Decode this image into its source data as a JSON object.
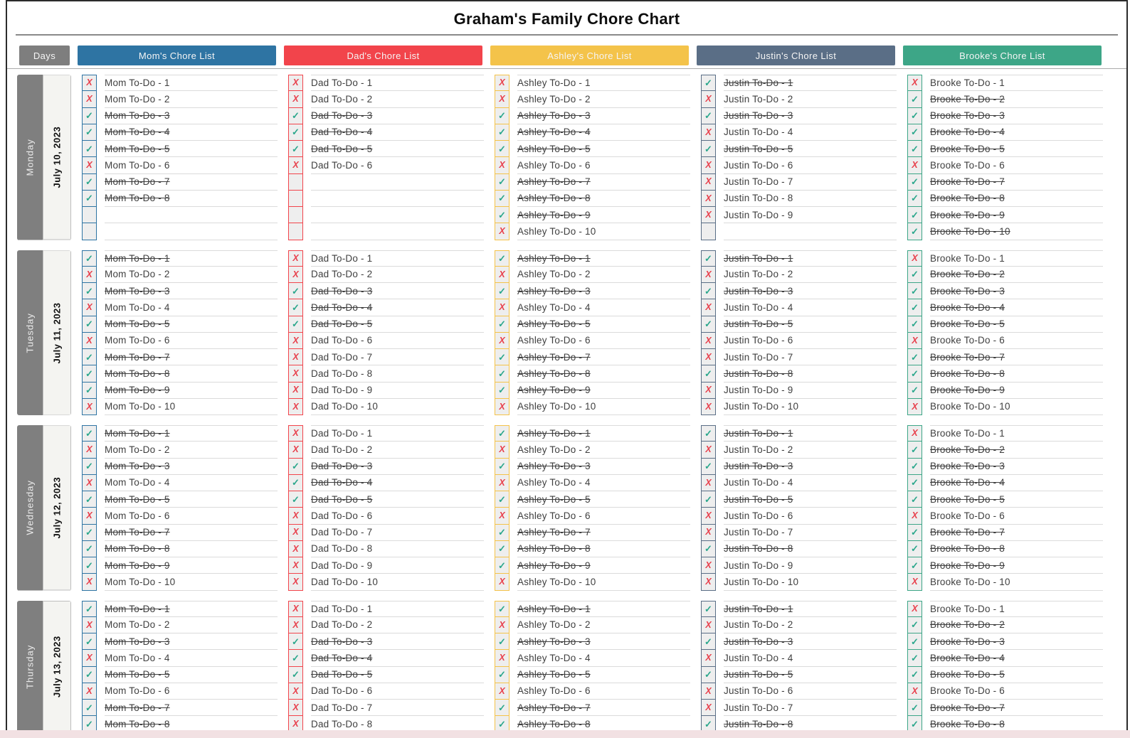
{
  "title": "Graham's Family Chore Chart",
  "days_header": "Days",
  "marks": {
    "done": "✓",
    "not_done": "X"
  },
  "colors": {
    "days_header_bg": "#7e7e7e",
    "check": "#2ba78c",
    "cross": "#e8414d",
    "text": "#3f3f3f",
    "row_line": "#dbdbdb",
    "day_name_bg": "#7f7f7f",
    "day_name_text": "#ebebeb",
    "day_date_bg": "#f4f4f1",
    "day_date_border": "#bdbdbd",
    "bottom_strip": "#f2e1e3"
  },
  "members": [
    {
      "id": "mom",
      "header": "Mom's Chore List",
      "color": "#2e74a3"
    },
    {
      "id": "dad",
      "header": "Dad's Chore List",
      "color": "#f2444b"
    },
    {
      "id": "ashley",
      "header": "Ashley's Chore List",
      "color": "#f4c34a"
    },
    {
      "id": "justin",
      "header": "Justin's Chore List",
      "color": "#5a6e86"
    },
    {
      "id": "brooke",
      "header": "Brooke's Chore List",
      "color": "#3da687"
    }
  ],
  "days": [
    {
      "name": "Monday",
      "date": "July 10, 2023",
      "lists": {
        "mom": [
          [
            "Mom To-Do - 1",
            "x"
          ],
          [
            "Mom To-Do - 2",
            "x"
          ],
          [
            "Mom To-Do - 3",
            "c"
          ],
          [
            "Mom To-Do - 4",
            "c"
          ],
          [
            "Mom To-Do - 5",
            "c"
          ],
          [
            "Mom To-Do - 6",
            "x"
          ],
          [
            "Mom To-Do - 7",
            "c"
          ],
          [
            "Mom To-Do - 8",
            "c"
          ],
          [
            "",
            "e"
          ],
          [
            "",
            "e"
          ]
        ],
        "dad": [
          [
            "Dad To-Do - 1",
            "x"
          ],
          [
            "Dad To-Do - 2",
            "x"
          ],
          [
            "Dad To-Do - 3",
            "c"
          ],
          [
            "Dad To-Do - 4",
            "c"
          ],
          [
            "Dad To-Do - 5",
            "c"
          ],
          [
            "Dad To-Do - 6",
            "x"
          ],
          [
            "",
            "e"
          ],
          [
            "",
            "e"
          ],
          [
            "",
            "e"
          ],
          [
            "",
            "e"
          ]
        ],
        "ashley": [
          [
            "Ashley To-Do - 1",
            "x"
          ],
          [
            "Ashley To-Do - 2",
            "x"
          ],
          [
            "Ashley To-Do - 3",
            "c"
          ],
          [
            "Ashley To-Do - 4",
            "c"
          ],
          [
            "Ashley To-Do - 5",
            "c"
          ],
          [
            "Ashley To-Do - 6",
            "x"
          ],
          [
            "Ashley To-Do - 7",
            "c"
          ],
          [
            "Ashley To-Do - 8",
            "c"
          ],
          [
            "Ashley To-Do - 9",
            "c"
          ],
          [
            "Ashley To-Do - 10",
            "x"
          ]
        ],
        "justin": [
          [
            "Justin To-Do - 1",
            "c"
          ],
          [
            "Justin To-Do - 2",
            "x"
          ],
          [
            "Justin To-Do - 3",
            "c"
          ],
          [
            "Justin To-Do - 4",
            "x"
          ],
          [
            "Justin To-Do - 5",
            "c"
          ],
          [
            "Justin To-Do - 6",
            "x"
          ],
          [
            "Justin To-Do - 7",
            "x"
          ],
          [
            "Justin To-Do - 8",
            "x"
          ],
          [
            "Justin To-Do - 9",
            "x"
          ],
          [
            "",
            "e"
          ]
        ],
        "brooke": [
          [
            "Brooke To-Do - 1",
            "x"
          ],
          [
            "Brooke To-Do - 2",
            "c"
          ],
          [
            "Brooke To-Do - 3",
            "c"
          ],
          [
            "Brooke To-Do - 4",
            "c"
          ],
          [
            "Brooke To-Do - 5",
            "c"
          ],
          [
            "Brooke To-Do - 6",
            "x"
          ],
          [
            "Brooke To-Do - 7",
            "c"
          ],
          [
            "Brooke To-Do - 8",
            "c"
          ],
          [
            "Brooke To-Do - 9",
            "c"
          ],
          [
            "Brooke To-Do - 10",
            "c"
          ]
        ]
      }
    },
    {
      "name": "Tuesday",
      "date": "July 11, 2023",
      "lists": {
        "mom": [
          [
            "Mom To-Do - 1",
            "c"
          ],
          [
            "Mom To-Do - 2",
            "x"
          ],
          [
            "Mom To-Do - 3",
            "c"
          ],
          [
            "Mom To-Do - 4",
            "x"
          ],
          [
            "Mom To-Do - 5",
            "c"
          ],
          [
            "Mom To-Do - 6",
            "x"
          ],
          [
            "Mom To-Do - 7",
            "c"
          ],
          [
            "Mom To-Do - 8",
            "c"
          ],
          [
            "Mom To-Do - 9",
            "c"
          ],
          [
            "Mom To-Do - 10",
            "x"
          ]
        ],
        "dad": [
          [
            "Dad To-Do - 1",
            "x"
          ],
          [
            "Dad To-Do - 2",
            "x"
          ],
          [
            "Dad To-Do - 3",
            "c"
          ],
          [
            "Dad To-Do - 4",
            "c"
          ],
          [
            "Dad To-Do - 5",
            "c"
          ],
          [
            "Dad To-Do - 6",
            "x"
          ],
          [
            "Dad To-Do - 7",
            "x"
          ],
          [
            "Dad To-Do - 8",
            "x"
          ],
          [
            "Dad To-Do - 9",
            "x"
          ],
          [
            "Dad To-Do - 10",
            "x"
          ]
        ],
        "ashley": [
          [
            "Ashley To-Do - 1",
            "c"
          ],
          [
            "Ashley To-Do - 2",
            "x"
          ],
          [
            "Ashley To-Do - 3",
            "c"
          ],
          [
            "Ashley To-Do - 4",
            "x"
          ],
          [
            "Ashley To-Do - 5",
            "c"
          ],
          [
            "Ashley To-Do - 6",
            "x"
          ],
          [
            "Ashley To-Do - 7",
            "c"
          ],
          [
            "Ashley To-Do - 8",
            "c"
          ],
          [
            "Ashley To-Do - 9",
            "c"
          ],
          [
            "Ashley To-Do - 10",
            "x"
          ]
        ],
        "justin": [
          [
            "Justin To-Do - 1",
            "c"
          ],
          [
            "Justin To-Do - 2",
            "x"
          ],
          [
            "Justin To-Do - 3",
            "c"
          ],
          [
            "Justin To-Do - 4",
            "x"
          ],
          [
            "Justin To-Do - 5",
            "c"
          ],
          [
            "Justin To-Do - 6",
            "x"
          ],
          [
            "Justin To-Do - 7",
            "x"
          ],
          [
            "Justin To-Do - 8",
            "c"
          ],
          [
            "Justin To-Do - 9",
            "x"
          ],
          [
            "Justin To-Do - 10",
            "x"
          ]
        ],
        "brooke": [
          [
            "Brooke To-Do - 1",
            "x"
          ],
          [
            "Brooke To-Do - 2",
            "c"
          ],
          [
            "Brooke To-Do - 3",
            "c"
          ],
          [
            "Brooke To-Do - 4",
            "c"
          ],
          [
            "Brooke To-Do - 5",
            "c"
          ],
          [
            "Brooke To-Do - 6",
            "x"
          ],
          [
            "Brooke To-Do - 7",
            "c"
          ],
          [
            "Brooke To-Do - 8",
            "c"
          ],
          [
            "Brooke To-Do - 9",
            "c"
          ],
          [
            "Brooke To-Do - 10",
            "x"
          ]
        ]
      }
    },
    {
      "name": "Wednesday",
      "date": "July 12, 2023",
      "lists": {
        "mom": [
          [
            "Mom To-Do - 1",
            "c"
          ],
          [
            "Mom To-Do - 2",
            "x"
          ],
          [
            "Mom To-Do - 3",
            "c"
          ],
          [
            "Mom To-Do - 4",
            "x"
          ],
          [
            "Mom To-Do - 5",
            "c"
          ],
          [
            "Mom To-Do - 6",
            "x"
          ],
          [
            "Mom To-Do - 7",
            "c"
          ],
          [
            "Mom To-Do - 8",
            "c"
          ],
          [
            "Mom To-Do - 9",
            "c"
          ],
          [
            "Mom To-Do - 10",
            "x"
          ]
        ],
        "dad": [
          [
            "Dad To-Do - 1",
            "x"
          ],
          [
            "Dad To-Do - 2",
            "x"
          ],
          [
            "Dad To-Do - 3",
            "c"
          ],
          [
            "Dad To-Do - 4",
            "c"
          ],
          [
            "Dad To-Do - 5",
            "c"
          ],
          [
            "Dad To-Do - 6",
            "x"
          ],
          [
            "Dad To-Do - 7",
            "x"
          ],
          [
            "Dad To-Do - 8",
            "x"
          ],
          [
            "Dad To-Do - 9",
            "x"
          ],
          [
            "Dad To-Do - 10",
            "x"
          ]
        ],
        "ashley": [
          [
            "Ashley To-Do - 1",
            "c"
          ],
          [
            "Ashley To-Do - 2",
            "x"
          ],
          [
            "Ashley To-Do - 3",
            "c"
          ],
          [
            "Ashley To-Do - 4",
            "x"
          ],
          [
            "Ashley To-Do - 5",
            "c"
          ],
          [
            "Ashley To-Do - 6",
            "x"
          ],
          [
            "Ashley To-Do - 7",
            "c"
          ],
          [
            "Ashley To-Do - 8",
            "c"
          ],
          [
            "Ashley To-Do - 9",
            "c"
          ],
          [
            "Ashley To-Do - 10",
            "x"
          ]
        ],
        "justin": [
          [
            "Justin To-Do - 1",
            "c"
          ],
          [
            "Justin To-Do - 2",
            "x"
          ],
          [
            "Justin To-Do - 3",
            "c"
          ],
          [
            "Justin To-Do - 4",
            "x"
          ],
          [
            "Justin To-Do - 5",
            "c"
          ],
          [
            "Justin To-Do - 6",
            "x"
          ],
          [
            "Justin To-Do - 7",
            "x"
          ],
          [
            "Justin To-Do - 8",
            "c"
          ],
          [
            "Justin To-Do - 9",
            "x"
          ],
          [
            "Justin To-Do - 10",
            "x"
          ]
        ],
        "brooke": [
          [
            "Brooke To-Do - 1",
            "x"
          ],
          [
            "Brooke To-Do - 2",
            "c"
          ],
          [
            "Brooke To-Do - 3",
            "c"
          ],
          [
            "Brooke To-Do - 4",
            "c"
          ],
          [
            "Brooke To-Do - 5",
            "c"
          ],
          [
            "Brooke To-Do - 6",
            "x"
          ],
          [
            "Brooke To-Do - 7",
            "c"
          ],
          [
            "Brooke To-Do - 8",
            "c"
          ],
          [
            "Brooke To-Do - 9",
            "c"
          ],
          [
            "Brooke To-Do - 10",
            "x"
          ]
        ]
      }
    },
    {
      "name": "Thursday",
      "date": "July 13, 2023",
      "lists": {
        "mom": [
          [
            "Mom To-Do - 1",
            "c"
          ],
          [
            "Mom To-Do - 2",
            "x"
          ],
          [
            "Mom To-Do - 3",
            "c"
          ],
          [
            "Mom To-Do - 4",
            "x"
          ],
          [
            "Mom To-Do - 5",
            "c"
          ],
          [
            "Mom To-Do - 6",
            "x"
          ],
          [
            "Mom To-Do - 7",
            "c"
          ],
          [
            "Mom To-Do - 8",
            "c"
          ]
        ],
        "dad": [
          [
            "Dad To-Do - 1",
            "x"
          ],
          [
            "Dad To-Do - 2",
            "x"
          ],
          [
            "Dad To-Do - 3",
            "c"
          ],
          [
            "Dad To-Do - 4",
            "c"
          ],
          [
            "Dad To-Do - 5",
            "c"
          ],
          [
            "Dad To-Do - 6",
            "x"
          ],
          [
            "Dad To-Do - 7",
            "x"
          ],
          [
            "Dad To-Do - 8",
            "x"
          ]
        ],
        "ashley": [
          [
            "Ashley To-Do - 1",
            "c"
          ],
          [
            "Ashley To-Do - 2",
            "x"
          ],
          [
            "Ashley To-Do - 3",
            "c"
          ],
          [
            "Ashley To-Do - 4",
            "x"
          ],
          [
            "Ashley To-Do - 5",
            "c"
          ],
          [
            "Ashley To-Do - 6",
            "x"
          ],
          [
            "Ashley To-Do - 7",
            "c"
          ],
          [
            "Ashley To-Do - 8",
            "c"
          ]
        ],
        "justin": [
          [
            "Justin To-Do - 1",
            "c"
          ],
          [
            "Justin To-Do - 2",
            "x"
          ],
          [
            "Justin To-Do - 3",
            "c"
          ],
          [
            "Justin To-Do - 4",
            "x"
          ],
          [
            "Justin To-Do - 5",
            "c"
          ],
          [
            "Justin To-Do - 6",
            "x"
          ],
          [
            "Justin To-Do - 7",
            "x"
          ],
          [
            "Justin To-Do - 8",
            "c"
          ]
        ],
        "brooke": [
          [
            "Brooke To-Do - 1",
            "x"
          ],
          [
            "Brooke To-Do - 2",
            "c"
          ],
          [
            "Brooke To-Do - 3",
            "c"
          ],
          [
            "Brooke To-Do - 4",
            "c"
          ],
          [
            "Brooke To-Do - 5",
            "c"
          ],
          [
            "Brooke To-Do - 6",
            "x"
          ],
          [
            "Brooke To-Do - 7",
            "c"
          ],
          [
            "Brooke To-Do - 8",
            "c"
          ]
        ]
      }
    }
  ]
}
